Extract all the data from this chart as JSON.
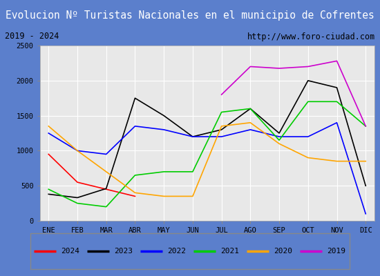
{
  "title": "Evolucion Nº Turistas Nacionales en el municipio de Cofrentes",
  "subtitle_left": "2019 - 2024",
  "subtitle_right": "http://www.foro-ciudad.com",
  "months": [
    "ENE",
    "FEB",
    "MAR",
    "ABR",
    "MAY",
    "JUN",
    "JUL",
    "AGO",
    "SEP",
    "OCT",
    "NOV",
    "DIC"
  ],
  "ylim": [
    0,
    2500
  ],
  "yticks": [
    0,
    500,
    1000,
    1500,
    2000,
    2500
  ],
  "series": {
    "2024": {
      "color": "#ff0000",
      "values": [
        950,
        550,
        450,
        350,
        null,
        null,
        null,
        null,
        null,
        null,
        null,
        null
      ]
    },
    "2023": {
      "color": "#000000",
      "values": [
        380,
        330,
        460,
        1750,
        1500,
        1200,
        1300,
        1600,
        1250,
        2000,
        1900,
        500
      ]
    },
    "2022": {
      "color": "#0000ff",
      "values": [
        1250,
        1000,
        950,
        1350,
        1300,
        1200,
        1200,
        1300,
        1200,
        1200,
        1400,
        100
      ]
    },
    "2021": {
      "color": "#00cc00",
      "values": [
        450,
        250,
        200,
        650,
        700,
        700,
        1550,
        1600,
        1150,
        1700,
        1700,
        1350
      ]
    },
    "2020": {
      "color": "#ffa500",
      "values": [
        1350,
        1000,
        700,
        400,
        350,
        350,
        1350,
        1400,
        1100,
        900,
        850,
        850
      ]
    },
    "2019": {
      "color": "#cc00cc",
      "values": [
        null,
        null,
        null,
        null,
        null,
        null,
        1800,
        2200,
        2175,
        2200,
        2280,
        1350
      ]
    }
  },
  "legend_order": [
    "2024",
    "2023",
    "2022",
    "2021",
    "2020",
    "2019"
  ],
  "title_bg_color": "#5b7fcc",
  "title_color": "#ffffff",
  "plot_bg_color": "#e8e8e8",
  "grid_color": "#ffffff",
  "border_color": "#5b7fcc"
}
